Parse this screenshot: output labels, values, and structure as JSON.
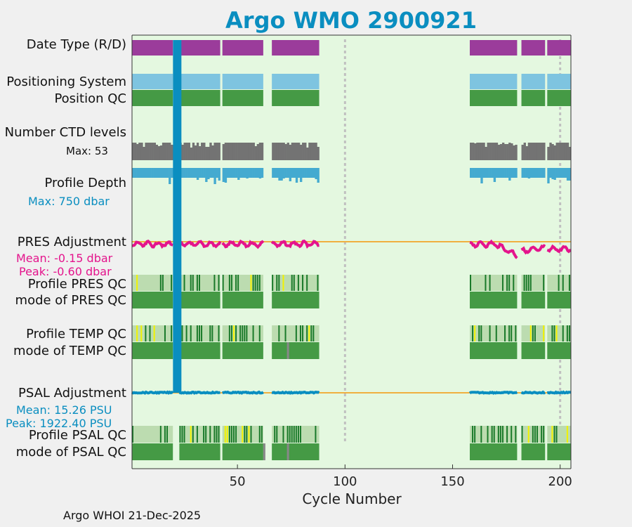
{
  "chart_data": {
    "type": "table",
    "title": "Argo WMO 2900921",
    "xlabel": "Cycle Number",
    "xlim": [
      1,
      205
    ],
    "xticks": [
      50,
      100,
      150,
      200
    ],
    "xtick_labels": [
      "50",
      "100",
      "150",
      "200"
    ],
    "rows": {
      "date_type": "Date Type (R/D)",
      "positioning": "Positioning System",
      "position_qc": "Position QC",
      "ctd_levels": "Number CTD levels",
      "ctd_max": "Max: 53",
      "profile_depth": "Profile Depth",
      "depth_max": "Max:  750 dbar",
      "pres_adj": "PRES Adjustment",
      "pres_mean": "Mean: -0.15 dbar",
      "pres_peak": "Peak: -0.60 dbar",
      "profile_pres_qc": "Profile PRES QC",
      "mode_pres_qc": "mode of PRES QC",
      "profile_temp_qc": "Profile TEMP QC",
      "mode_temp_qc": "mode of TEMP QC",
      "psal_adj": "PSAL Adjustment",
      "psal_mean": "Mean: 15.26 PSU",
      "psal_peak": "Peak: 1922.40 PSU",
      "profile_psal_qc": "Profile PSAL QC",
      "mode_psal_qc": "mode of PSAL QC"
    },
    "data_segments": [
      [
        1,
        20
      ],
      [
        23,
        42
      ],
      [
        43,
        62
      ],
      [
        66,
        88
      ],
      [
        158,
        180
      ],
      [
        182,
        193
      ],
      [
        194,
        205
      ]
    ],
    "gap_markers": [
      100,
      200
    ],
    "highlight_cycle": 22,
    "ctd_levels_max": 53,
    "profile_depth_max_dbar": 750,
    "pres_adjustment_mean_dbar": -0.15,
    "pres_adjustment_peak_dbar": -0.6,
    "psal_adjustment_mean_psu": 15.26,
    "psal_adjustment_peak_psu": 1922.4,
    "colors": {
      "date_type": "#9b3c9b",
      "positioning": "#7ec4e0",
      "qc_good": "#459a45",
      "qc_light": "#bcdcb0",
      "qc_dark": "#1a7a2a",
      "qc_yellow": "#f2f200",
      "qc_gray": "#888888",
      "ctd": "#737373",
      "depth": "#44aad0",
      "pres": "#e4148c",
      "psal": "#0a8ec0",
      "zero_line": "#f0b040",
      "background": "#e4f8e0",
      "title": "#0a8ec0"
    }
  },
  "footer": "Argo WHOI 21-Dec-2025"
}
